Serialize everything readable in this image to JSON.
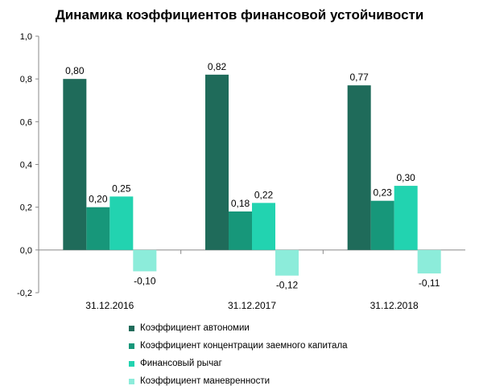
{
  "chart_data": {
    "type": "bar",
    "title": "Динамика коэффициентов финансовой устойчивости",
    "xlabel": "",
    "ylabel": "",
    "ylim": [
      -0.2,
      1.0
    ],
    "yticks": [
      1.0,
      0.8,
      0.6,
      0.4,
      0.2,
      0.0,
      -0.2
    ],
    "ytick_labels": [
      "1,0",
      "0,8",
      "0,6",
      "0,4",
      "0,2",
      "0,0",
      "-0,2"
    ],
    "grid": false,
    "legend_position": "bottom",
    "categories": [
      "31.12.2016",
      "31.12.2017",
      "31.12.2018"
    ],
    "series": [
      {
        "name": "Коэффициент автономии",
        "color": "#1f6b5a",
        "values": [
          0.8,
          0.82,
          0.77
        ],
        "labels": [
          "0,80",
          "0,82",
          "0,77"
        ]
      },
      {
        "name": "Коэффициент концентрации заемного капитала",
        "color": "#17977a",
        "values": [
          0.2,
          0.18,
          0.23
        ],
        "labels": [
          "0,20",
          "0,18",
          "0,23"
        ]
      },
      {
        "name": "Финансовый рычаг",
        "color": "#22d3b0",
        "values": [
          0.25,
          0.22,
          0.3
        ],
        "labels": [
          "0,25",
          "0,22",
          "0,30"
        ]
      },
      {
        "name": "Коэффициент маневренности",
        "color": "#8cecda",
        "values": [
          -0.1,
          -0.12,
          -0.11
        ],
        "labels": [
          "-0,10",
          "-0,12",
          "-0,11"
        ]
      }
    ]
  }
}
